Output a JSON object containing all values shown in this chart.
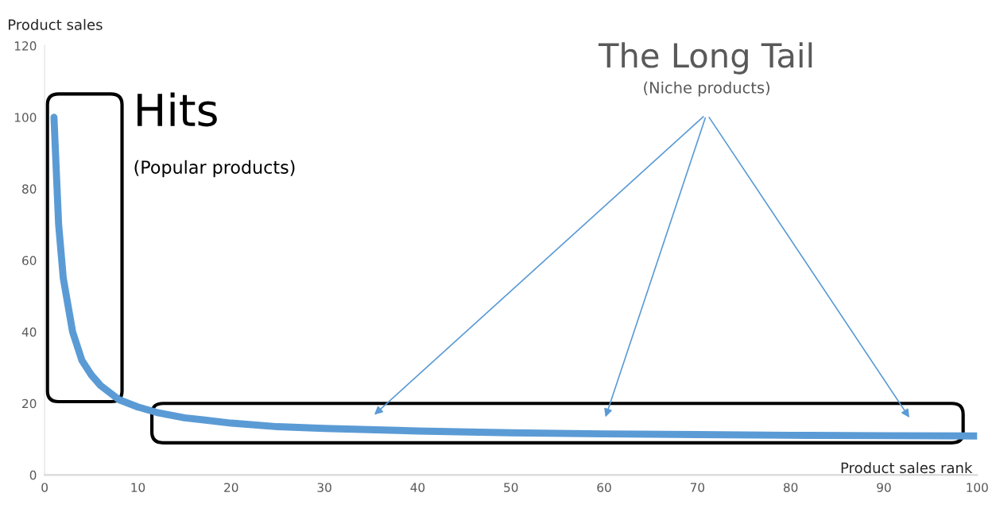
{
  "chart_data": {
    "type": "line",
    "xlabel": "Product sales rank",
    "ylabel": "Product sales",
    "x": [
      1,
      1.5,
      2,
      3,
      4,
      5,
      6,
      7,
      8,
      10,
      12,
      15,
      20,
      25,
      30,
      40,
      50,
      60,
      70,
      80,
      90,
      100
    ],
    "series": [
      {
        "color": "#5b9bd5",
        "values": [
          100,
          70,
          55,
          40,
          32,
          28,
          25,
          23,
          21,
          19,
          17.5,
          16,
          14.5,
          13.5,
          13,
          12.3,
          11.8,
          11.5,
          11.3,
          11.1,
          11,
          10.9
        ]
      }
    ],
    "xlim": [
      0,
      100
    ],
    "xticks": [
      0,
      10,
      20,
      30,
      40,
      50,
      60,
      70,
      80,
      90,
      100
    ],
    "ylim": [
      0,
      120
    ],
    "yticks": [
      0,
      20,
      40,
      60,
      80,
      100,
      120
    ],
    "grid": false,
    "legend": false,
    "marker": "none",
    "line_style": "solid",
    "annotations": [
      "Hits",
      "(Popular products)",
      "The Long Tail",
      "(Niche products)"
    ]
  }
}
